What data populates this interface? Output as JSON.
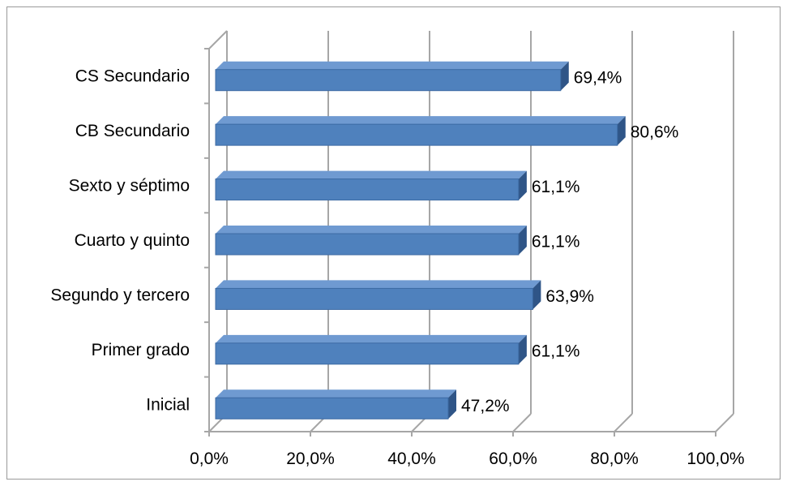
{
  "chart_data": {
    "type": "bar",
    "orientation": "horizontal",
    "style": "3d",
    "categories": [
      "Inicial",
      "Primer grado",
      "Segundo y tercero",
      "Cuarto y quinto",
      "Sexto y séptimo",
      "CB Secundario",
      "CS Secundario"
    ],
    "values": [
      47.2,
      61.1,
      63.9,
      61.1,
      61.1,
      80.6,
      69.4
    ],
    "value_labels": [
      "47,2%",
      "61,1%",
      "63,9%",
      "61,1%",
      "61,1%",
      "80,6%",
      "69,4%"
    ],
    "xticks": [
      0,
      20,
      40,
      60,
      80,
      100
    ],
    "xtick_labels": [
      "0,0%",
      "20,0%",
      "40,0%",
      "60,0%",
      "80,0%",
      "100,0%"
    ],
    "xlim": [
      0,
      100
    ],
    "grid": true,
    "legend": "none",
    "title": "",
    "xlabel": "",
    "ylabel": "",
    "colors": {
      "bar_front": "#4f81bd",
      "bar_top": "#6f9ad1",
      "bar_side": "#2f5587",
      "grid": "#a6a6a6"
    }
  }
}
